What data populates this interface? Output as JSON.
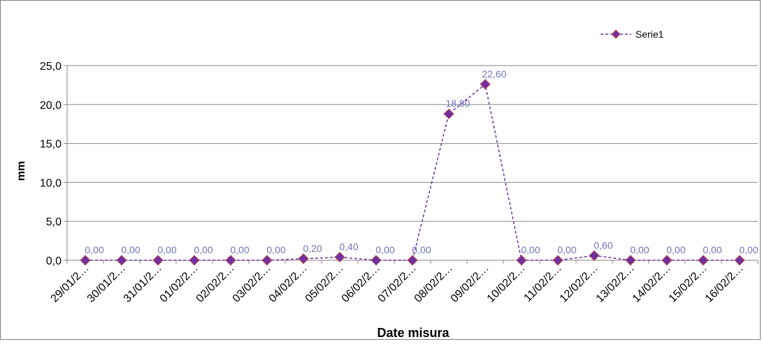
{
  "chart_data": {
    "type": "line",
    "categories": [
      "29/01/2…",
      "30/01/2…",
      "31/01/2…",
      "01/02/2…",
      "02/02/2…",
      "03/02/2…",
      "04/02/2…",
      "05/02/2…",
      "06/02/2…",
      "07/02/2…",
      "08/02/2…",
      "09/02/2…",
      "10/02/2…",
      "11/02/2…",
      "12/02/2…",
      "13/02/2…",
      "14/02/2…",
      "15/02/2…",
      "16/02/2…"
    ],
    "series": [
      {
        "name": "Serie1",
        "values": [
          0.0,
          0.0,
          0.0,
          0.0,
          0.0,
          0.0,
          0.2,
          0.4,
          0.0,
          0.0,
          18.8,
          22.6,
          0.0,
          0.0,
          0.6,
          0.0,
          0.0,
          0.0,
          0.0
        ],
        "labels": [
          "0,00",
          "0,00",
          "0,00",
          "0,00",
          "0,00",
          "0,00",
          "0,20",
          "0,40",
          "0,00",
          "0,00",
          "18,80",
          "22,60",
          "0,00",
          "0,00",
          "0,60",
          "0,00",
          "0,00",
          "0,00",
          "0,00"
        ]
      }
    ],
    "title": "",
    "xlabel": "Date misura",
    "ylabel": "mm",
    "ylim": [
      0,
      25
    ],
    "yticks": [
      0,
      5,
      10,
      15,
      20,
      25
    ],
    "ytick_labels": [
      "0,0",
      "5,0",
      "10,0",
      "15,0",
      "20,0",
      "25,0"
    ],
    "grid": true,
    "legend": "top-right",
    "colors": {
      "line": "#7030a0",
      "marker_fill": "#7030a0",
      "marker_edge": "#c0504d",
      "data_label": "#6f73b8",
      "grid": "#868686",
      "axis": "#868686"
    }
  }
}
